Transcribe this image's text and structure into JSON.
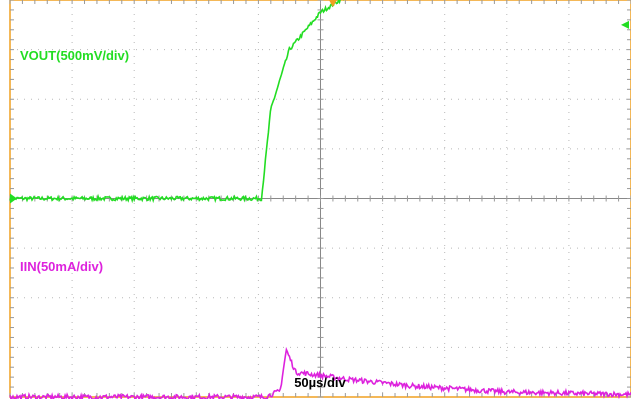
{
  "chart_data": {
    "type": "line",
    "xlabel": "50µs/div",
    "x_divisions": 10,
    "y_divisions": 8,
    "x_unit": "div",
    "channels": [
      {
        "name": "VOUT(500mV/div)",
        "color": "#22dd22",
        "y_offset_div": 0,
        "points": [
          [
            0,
            0
          ],
          [
            4.05,
            0
          ],
          [
            4.2,
            1.8
          ],
          [
            4.5,
            3.0
          ],
          [
            5.0,
            3.75
          ],
          [
            5.5,
            4.15
          ],
          [
            6.0,
            4.35
          ],
          [
            7.0,
            4.43
          ],
          [
            8.0,
            4.45
          ],
          [
            10,
            4.45
          ]
        ],
        "noise_div": 0.04
      },
      {
        "name": "IIN(50mA/div)",
        "color": "#dd22dd",
        "y_offset_div": -4,
        "points": [
          [
            0,
            0
          ],
          [
            4.1,
            0
          ],
          [
            4.35,
            0.12
          ],
          [
            4.45,
            0.95
          ],
          [
            4.6,
            0.5
          ],
          [
            5.5,
            0.35
          ],
          [
            6.5,
            0.22
          ],
          [
            8.0,
            0.1
          ],
          [
            10,
            0.05
          ]
        ],
        "noise_div": 0.05
      }
    ],
    "markers": {
      "trigger_color": "#f0a020",
      "ground_marker_color": "#22dd22",
      "trigger_level_marker_color": "#22dd22",
      "trigger_level_div": 3.5
    },
    "grid": true
  }
}
